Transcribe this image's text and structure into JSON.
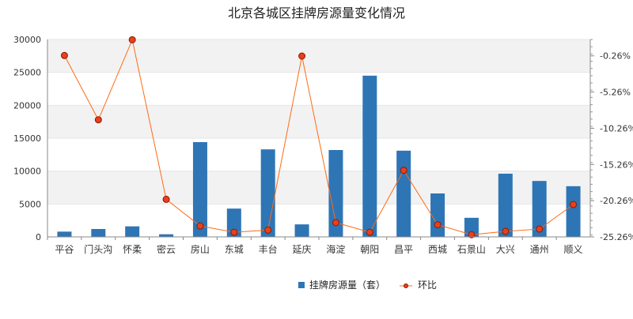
{
  "chart_data": {
    "type": "bar",
    "title": "北京各城区挂牌房源量变化情况",
    "categories": [
      "平谷",
      "门头沟",
      "怀柔",
      "密云",
      "房山",
      "东城",
      "丰台",
      "延庆",
      "海淀",
      "朝阳",
      "昌平",
      "西城",
      "石景山",
      "大兴",
      "通州",
      "顺义"
    ],
    "series": [
      {
        "name": "挂牌房源量（套）",
        "type": "bar",
        "axis": "left",
        "color": "#2e75b6",
        "values": [
          800,
          1200,
          1600,
          400,
          14400,
          4300,
          13300,
          1900,
          13200,
          24500,
          13100,
          6600,
          2900,
          9600,
          8500,
          7700
        ]
      },
      {
        "name": "环比",
        "type": "line",
        "axis": "right",
        "color": "#ff6a13",
        "marker_fill": "#e8401c",
        "marker_stroke": "#8a1a00",
        "values": [
          -0.21,
          -9.09,
          1.96,
          -20.07,
          -23.75,
          -24.62,
          -24.32,
          -0.29,
          -23.28,
          -24.62,
          -16.07,
          -23.58,
          -24.96,
          -24.49,
          -24.18,
          -20.79
        ]
      }
    ],
    "y_left": {
      "min": 0,
      "max": 30000,
      "ticks": [
        0,
        5000,
        10000,
        15000,
        20000,
        25000,
        30000
      ]
    },
    "y_right": {
      "min": -25.26,
      "max": 2.0,
      "tick_labels": [
        "-0.26%",
        "-5.26%",
        "-10.26%",
        "-15.26%",
        "-20.26%",
        "-25.26%"
      ],
      "tick_values": [
        -0.26,
        -5.26,
        -10.26,
        -15.26,
        -20.26,
        -25.26
      ]
    },
    "grid": true,
    "band_color": "#f2f2f2",
    "legend_position": "bottom"
  }
}
